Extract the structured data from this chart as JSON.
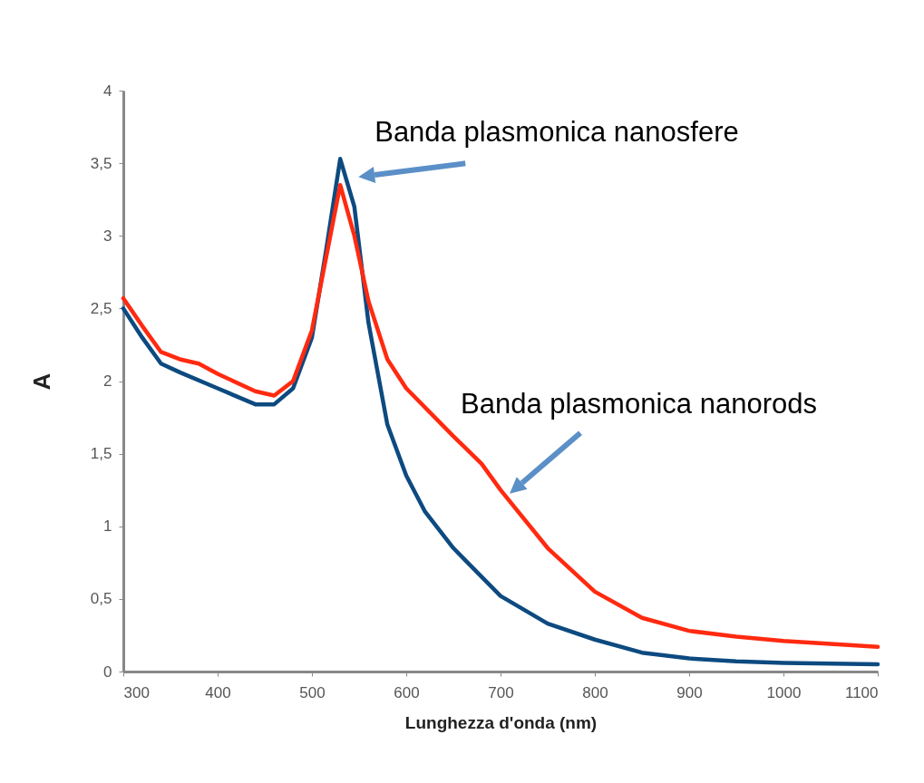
{
  "chart_data": {
    "type": "line",
    "xlabel": "Lunghezza d'onda (nm)",
    "ylabel": "A",
    "xlim": [
      300,
      1100
    ],
    "xticks": [
      300,
      400,
      500,
      600,
      700,
      800,
      900,
      1000,
      1100
    ],
    "ylim": [
      0,
      4
    ],
    "yticks": [
      0,
      {
        "value": 0.5,
        "label": "0,5"
      },
      1,
      {
        "value": 1.5,
        "label": "1,5"
      },
      2,
      {
        "value": 2.5,
        "label": "2,5"
      },
      3,
      {
        "value": 3.5,
        "label": "3,5"
      },
      4
    ],
    "line_style": "solid",
    "series": [
      {
        "color": "#0d4a80",
        "x": [
          300,
          320,
          340,
          360,
          400,
          440,
          460,
          480,
          500,
          515,
          530,
          545,
          560,
          580,
          600,
          620,
          650,
          700,
          750,
          800,
          850,
          900,
          950,
          1000,
          1100
        ],
        "values": [
          2.5,
          2.3,
          2.12,
          2.06,
          1.95,
          1.84,
          1.84,
          1.95,
          2.3,
          2.9,
          3.53,
          3.2,
          2.4,
          1.7,
          1.35,
          1.1,
          0.85,
          0.52,
          0.33,
          0.22,
          0.13,
          0.09,
          0.07,
          0.06,
          0.05
        ]
      },
      {
        "color": "#ff2a10",
        "x": [
          300,
          320,
          340,
          360,
          380,
          400,
          440,
          460,
          480,
          500,
          515,
          530,
          545,
          560,
          580,
          600,
          650,
          680,
          700,
          750,
          800,
          850,
          900,
          950,
          1000,
          1050,
          1100
        ],
        "values": [
          2.57,
          2.38,
          2.2,
          2.15,
          2.12,
          2.05,
          1.93,
          1.9,
          2.0,
          2.35,
          2.85,
          3.35,
          3.0,
          2.55,
          2.15,
          1.95,
          1.62,
          1.43,
          1.25,
          0.85,
          0.55,
          0.37,
          0.28,
          0.24,
          0.21,
          0.19,
          0.17
        ]
      }
    ],
    "annotations": [
      {
        "text": "Banda plasmonica nanosfere",
        "x": 530,
        "y": 3.53
      },
      {
        "text": "Banda plasmonica nanorods",
        "x": 700,
        "y": 1.25
      }
    ]
  }
}
